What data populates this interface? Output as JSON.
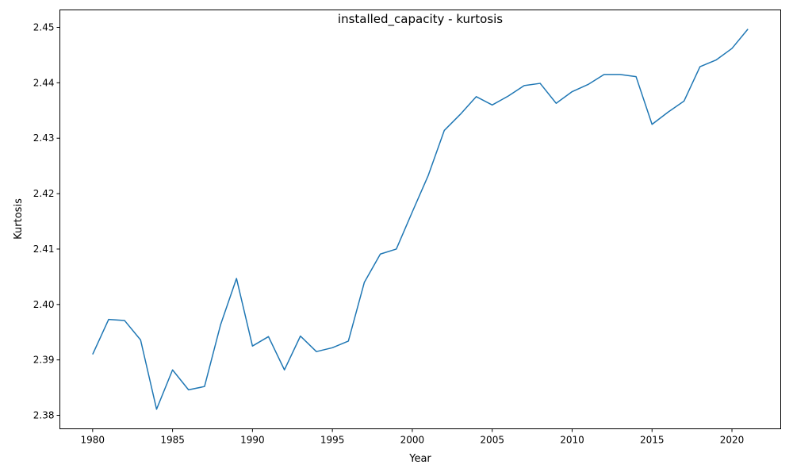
{
  "chart_data": {
    "type": "line",
    "title": "installed_capacity - kurtosis",
    "xlabel": "Year",
    "ylabel": "Kurtosis",
    "xlim": [
      1977.95,
      2023.05
    ],
    "ylim": [
      2.37757,
      2.45315
    ],
    "grid": false,
    "x_ticks": [
      1980,
      1985,
      1990,
      1995,
      2000,
      2005,
      2010,
      2015,
      2020
    ],
    "y_ticks": [
      2.38,
      2.39,
      2.4,
      2.41,
      2.42,
      2.43,
      2.44,
      2.45
    ],
    "y_tick_labels": [
      "2.38",
      "2.39",
      "2.40",
      "2.41",
      "2.42",
      "2.43",
      "2.44",
      "2.45"
    ],
    "series": [
      {
        "color": "#1f77b4",
        "x": [
          1980,
          1981,
          1982,
          1983,
          1984,
          1985,
          1986,
          1987,
          1988,
          1989,
          1990,
          1991,
          1992,
          1993,
          1994,
          1995,
          1996,
          1997,
          1998,
          1999,
          2000,
          2001,
          2002,
          2003,
          2004,
          2005,
          2006,
          2007,
          2008,
          2009,
          2010,
          2011,
          2012,
          2013,
          2014,
          2015,
          2016,
          2017,
          2018,
          2019,
          2020,
          2021
        ],
        "values": [
          2.391,
          2.3973,
          2.3971,
          2.3936,
          2.3811,
          2.3882,
          2.3846,
          2.3852,
          2.3963,
          2.4047,
          2.3925,
          2.3942,
          2.3882,
          2.3943,
          2.3915,
          2.3922,
          2.3934,
          2.404,
          2.4091,
          2.41,
          2.4167,
          2.4233,
          2.4314,
          2.4343,
          2.4375,
          2.436,
          2.4376,
          2.4395,
          2.4399,
          2.4363,
          2.4384,
          2.4397,
          2.4415,
          2.4415,
          2.4411,
          2.4325,
          2.4347,
          2.4367,
          2.4429,
          2.4441,
          2.4462,
          2.4497
        ]
      }
    ]
  }
}
